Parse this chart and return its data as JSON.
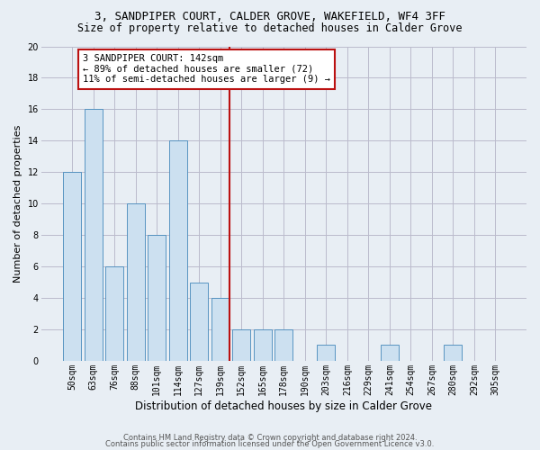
{
  "title1": "3, SANDPIPER COURT, CALDER GROVE, WAKEFIELD, WF4 3FF",
  "title2": "Size of property relative to detached houses in Calder Grove",
  "xlabel": "Distribution of detached houses by size in Calder Grove",
  "ylabel": "Number of detached properties",
  "bar_labels": [
    "50sqm",
    "63sqm",
    "76sqm",
    "88sqm",
    "101sqm",
    "114sqm",
    "127sqm",
    "139sqm",
    "152sqm",
    "165sqm",
    "178sqm",
    "190sqm",
    "203sqm",
    "216sqm",
    "229sqm",
    "241sqm",
    "254sqm",
    "267sqm",
    "280sqm",
    "292sqm",
    "305sqm"
  ],
  "bar_heights": [
    12,
    16,
    6,
    10,
    8,
    14,
    5,
    4,
    2,
    2,
    2,
    0,
    1,
    0,
    0,
    1,
    0,
    0,
    1,
    0,
    0
  ],
  "bar_color": "#cce0f0",
  "bar_edgecolor": "#4488bb",
  "vline_x_index": 7,
  "vline_color": "#bb1111",
  "annotation_text": "3 SANDPIPER COURT: 142sqm\n← 89% of detached houses are smaller (72)\n11% of semi-detached houses are larger (9) →",
  "annotation_box_edgecolor": "#bb1111",
  "annotation_box_facecolor": "#ffffff",
  "ylim": [
    0,
    20
  ],
  "yticks": [
    0,
    2,
    4,
    6,
    8,
    10,
    12,
    14,
    16,
    18,
    20
  ],
  "footer1": "Contains HM Land Registry data © Crown copyright and database right 2024.",
  "footer2": "Contains public sector information licensed under the Open Government Licence v3.0.",
  "grid_color": "#bbbbcc",
  "background_color": "#e8eef4",
  "title_fontsize": 9,
  "subtitle_fontsize": 8.5,
  "ylabel_fontsize": 8,
  "xlabel_fontsize": 8.5,
  "tick_fontsize": 7,
  "annotation_fontsize": 7.5,
  "footer_fontsize": 6
}
